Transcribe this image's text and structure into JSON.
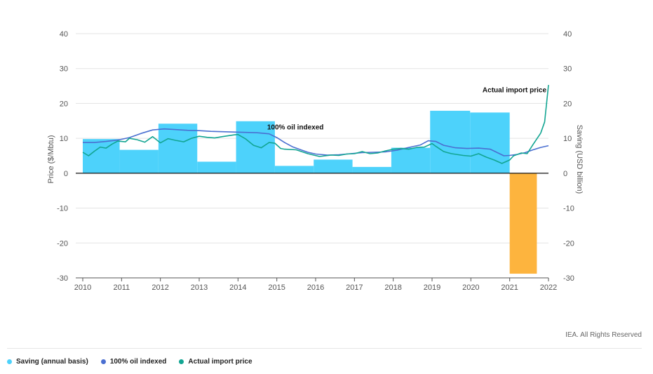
{
  "chart_data": {
    "type": "bar+line",
    "title": "",
    "xlabel": "",
    "ylabel_left": "Price ($/Mbtu)",
    "ylabel_right": "Saving (USD billion)",
    "ylim": [
      -30,
      40
    ],
    "yticks": [
      40,
      30,
      20,
      10,
      0,
      -10,
      -20,
      -30
    ],
    "xlim": [
      2010,
      2022
    ],
    "xticks": [
      "2010",
      "2011",
      "2012",
      "2013",
      "2014",
      "2015",
      "2016",
      "2017",
      "2018",
      "2019",
      "2020",
      "2021",
      "2022"
    ],
    "bars": {
      "name": "Saving (annual basis)",
      "color": "#4dd2fb",
      "negative_color": "#fdb43e",
      "items": [
        {
          "x0": 2010.0,
          "x1": 2010.95,
          "value": 9.8
        },
        {
          "x0": 2010.95,
          "x1": 2011.95,
          "value": 6.7
        },
        {
          "x0": 2011.95,
          "x1": 2012.95,
          "value": 14.2
        },
        {
          "x0": 2012.95,
          "x1": 2013.95,
          "value": 3.3
        },
        {
          "x0": 2013.95,
          "x1": 2014.95,
          "value": 14.9
        },
        {
          "x0": 2014.95,
          "x1": 2015.95,
          "value": 2.1
        },
        {
          "x0": 2015.95,
          "x1": 2016.95,
          "value": 3.9
        },
        {
          "x0": 2016.95,
          "x1": 2017.95,
          "value": 1.8
        },
        {
          "x0": 2017.95,
          "x1": 2018.95,
          "value": 7.3
        },
        {
          "x0": 2018.95,
          "x1": 2019.98,
          "value": 17.9
        },
        {
          "x0": 2019.98,
          "x1": 2021.0,
          "value": 17.4
        },
        {
          "x0": 2021.0,
          "x1": 2021.7,
          "value": -28.8
        }
      ]
    },
    "series": [
      {
        "name": "100% oil indexed",
        "color": "#4a6fd1",
        "points": [
          [
            2010.0,
            8.8
          ],
          [
            2010.3,
            8.8
          ],
          [
            2010.6,
            9.1
          ],
          [
            2010.9,
            9.5
          ],
          [
            2011.2,
            10.2
          ],
          [
            2011.5,
            11.4
          ],
          [
            2011.8,
            12.4
          ],
          [
            2012.1,
            12.7
          ],
          [
            2012.4,
            12.5
          ],
          [
            2012.7,
            12.3
          ],
          [
            2013.0,
            12.2
          ],
          [
            2013.3,
            12.0
          ],
          [
            2013.6,
            11.9
          ],
          [
            2013.9,
            11.8
          ],
          [
            2014.2,
            11.7
          ],
          [
            2014.5,
            11.6
          ],
          [
            2014.8,
            11.3
          ],
          [
            2015.0,
            10.2
          ],
          [
            2015.2,
            8.8
          ],
          [
            2015.4,
            7.6
          ],
          [
            2015.6,
            6.8
          ],
          [
            2015.8,
            6.0
          ],
          [
            2016.0,
            5.5
          ],
          [
            2016.3,
            5.2
          ],
          [
            2016.6,
            5.3
          ],
          [
            2016.9,
            5.6
          ],
          [
            2017.2,
            5.9
          ],
          [
            2017.5,
            6.0
          ],
          [
            2017.8,
            6.1
          ],
          [
            2018.1,
            6.6
          ],
          [
            2018.4,
            7.4
          ],
          [
            2018.7,
            8.1
          ],
          [
            2018.9,
            9.3
          ],
          [
            2019.1,
            9.1
          ],
          [
            2019.3,
            8.0
          ],
          [
            2019.6,
            7.3
          ],
          [
            2019.9,
            7.1
          ],
          [
            2020.2,
            7.2
          ],
          [
            2020.5,
            6.9
          ],
          [
            2020.7,
            5.8
          ],
          [
            2020.85,
            5.0
          ],
          [
            2021.0,
            5.1
          ],
          [
            2021.2,
            5.4
          ],
          [
            2021.4,
            5.9
          ],
          [
            2021.6,
            6.7
          ],
          [
            2021.8,
            7.4
          ],
          [
            2022.0,
            7.9
          ]
        ]
      },
      {
        "name": "Actual import price",
        "color": "#12a592",
        "points": [
          [
            2010.0,
            6.0
          ],
          [
            2010.15,
            5.0
          ],
          [
            2010.3,
            6.3
          ],
          [
            2010.45,
            7.5
          ],
          [
            2010.6,
            7.2
          ],
          [
            2010.75,
            8.3
          ],
          [
            2010.9,
            9.2
          ],
          [
            2011.1,
            9.0
          ],
          [
            2011.2,
            10.0
          ],
          [
            2011.4,
            9.6
          ],
          [
            2011.6,
            8.9
          ],
          [
            2011.8,
            10.5
          ],
          [
            2012.0,
            8.7
          ],
          [
            2012.2,
            9.9
          ],
          [
            2012.4,
            9.4
          ],
          [
            2012.6,
            9.0
          ],
          [
            2012.8,
            10.0
          ],
          [
            2013.0,
            10.6
          ],
          [
            2013.2,
            10.3
          ],
          [
            2013.4,
            10.1
          ],
          [
            2013.6,
            10.5
          ],
          [
            2013.9,
            11.0
          ],
          [
            2014.0,
            11.1
          ],
          [
            2014.2,
            9.8
          ],
          [
            2014.4,
            8.0
          ],
          [
            2014.6,
            7.3
          ],
          [
            2014.8,
            8.8
          ],
          [
            2014.95,
            8.6
          ],
          [
            2015.1,
            7.1
          ],
          [
            2015.2,
            6.9
          ],
          [
            2015.5,
            6.7
          ],
          [
            2015.8,
            5.6
          ],
          [
            2016.1,
            4.8
          ],
          [
            2016.4,
            5.2
          ],
          [
            2016.6,
            5.1
          ],
          [
            2016.8,
            5.5
          ],
          [
            2017.0,
            5.6
          ],
          [
            2017.2,
            6.2
          ],
          [
            2017.4,
            5.6
          ],
          [
            2017.6,
            5.8
          ],
          [
            2017.8,
            6.4
          ],
          [
            2018.0,
            6.9
          ],
          [
            2018.2,
            7.1
          ],
          [
            2018.4,
            6.9
          ],
          [
            2018.6,
            7.4
          ],
          [
            2018.8,
            7.5
          ],
          [
            2019.0,
            8.5
          ],
          [
            2019.1,
            7.7
          ],
          [
            2019.3,
            6.2
          ],
          [
            2019.5,
            5.6
          ],
          [
            2019.8,
            5.1
          ],
          [
            2020.0,
            4.9
          ],
          [
            2020.2,
            5.6
          ],
          [
            2020.4,
            4.6
          ],
          [
            2020.6,
            3.8
          ],
          [
            2020.8,
            2.8
          ],
          [
            2021.0,
            3.8
          ],
          [
            2021.1,
            5.0
          ],
          [
            2021.3,
            5.8
          ],
          [
            2021.45,
            5.6
          ],
          [
            2021.6,
            8.2
          ],
          [
            2021.8,
            11.5
          ],
          [
            2021.9,
            14.7
          ],
          [
            2022.0,
            25.3
          ]
        ]
      }
    ],
    "annotations": [
      {
        "text": "100% oil indexed",
        "x": 2014.75,
        "y": 12.5
      },
      {
        "text": "Actual import price",
        "x": 2020.3,
        "y": 23.2
      }
    ],
    "grid": true,
    "legend_position": "bottom-left"
  },
  "credit": "IEA. All Rights Reserved",
  "legend": [
    {
      "label": "Saving (annual basis)",
      "color": "#4dd2fb"
    },
    {
      "label": "100% oil indexed",
      "color": "#4a6fd1"
    },
    {
      "label": "Actual import price",
      "color": "#12a592"
    }
  ]
}
